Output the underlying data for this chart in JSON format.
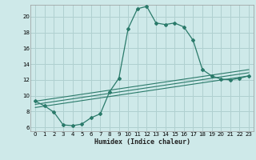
{
  "xlabel": "Humidex (Indice chaleur)",
  "background_color": "#cee9e9",
  "grid_color": "#b0d0d0",
  "line_color": "#2a7a6a",
  "xlim": [
    -0.5,
    23.5
  ],
  "ylim": [
    5.5,
    21.5
  ],
  "xticks": [
    0,
    1,
    2,
    3,
    4,
    5,
    6,
    7,
    8,
    9,
    10,
    11,
    12,
    13,
    14,
    15,
    16,
    17,
    18,
    19,
    20,
    21,
    22,
    23
  ],
  "yticks": [
    6,
    8,
    10,
    12,
    14,
    16,
    18,
    20
  ],
  "series": [
    {
      "x": [
        0,
        1,
        2,
        3,
        4,
        5,
        6,
        7,
        8,
        9,
        10,
        11,
        12,
        13,
        14,
        15,
        16,
        17,
        18,
        19,
        20,
        21,
        22,
        23
      ],
      "y": [
        9.3,
        8.7,
        7.9,
        6.3,
        6.2,
        6.4,
        7.2,
        7.7,
        10.5,
        12.2,
        18.5,
        21.0,
        21.3,
        19.2,
        19.0,
        19.2,
        18.7,
        17.0,
        13.3,
        12.5,
        12.1,
        12.0,
        12.2,
        12.5
      ]
    },
    {
      "x": [
        0,
        23
      ],
      "y": [
        8.5,
        12.5
      ]
    },
    {
      "x": [
        0,
        23
      ],
      "y": [
        8.9,
        12.9
      ]
    },
    {
      "x": [
        0,
        23
      ],
      "y": [
        9.3,
        13.3
      ]
    }
  ]
}
